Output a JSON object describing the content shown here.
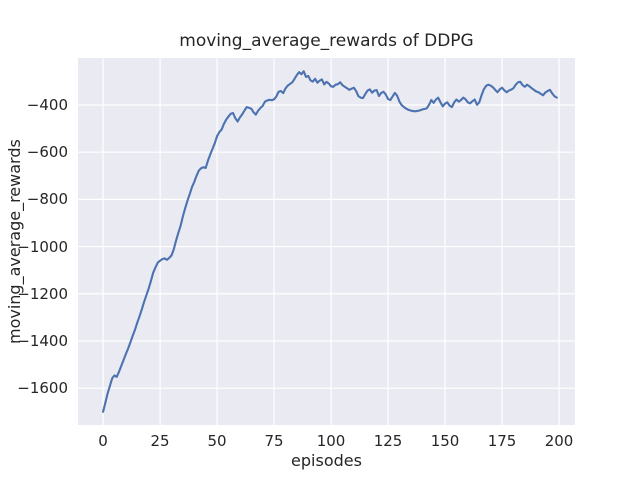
{
  "chart_data": {
    "type": "line",
    "title": "moving_average_rewards of DDPG",
    "xlabel": "episodes",
    "ylabel": "moving_average_rewards",
    "xlim": [
      -11,
      207
    ],
    "ylim": [
      -1756,
      -201
    ],
    "grid": true,
    "legend_position": "none",
    "background_color": "#eaeaf2",
    "grid_color": "#ffffff",
    "line_color": "#4c72b0",
    "text_color": "#262626",
    "x_ticks": [
      {
        "value": 0,
        "label": "0"
      },
      {
        "value": 25,
        "label": "25"
      },
      {
        "value": 50,
        "label": "50"
      },
      {
        "value": 75,
        "label": "75"
      },
      {
        "value": 100,
        "label": "100"
      },
      {
        "value": 125,
        "label": "125"
      },
      {
        "value": 150,
        "label": "150"
      },
      {
        "value": 175,
        "label": "175"
      },
      {
        "value": 200,
        "label": "200"
      }
    ],
    "y_ticks": [
      {
        "value": -400,
        "label": "−400"
      },
      {
        "value": -600,
        "label": "−600"
      },
      {
        "value": -800,
        "label": "−800"
      },
      {
        "value": -1000,
        "label": "−1000"
      },
      {
        "value": -1200,
        "label": "−1200"
      },
      {
        "value": -1400,
        "label": "−1400"
      },
      {
        "value": -1600,
        "label": "−1600"
      }
    ],
    "series": [
      {
        "name": "moving_average_rewards",
        "x": [
          0,
          1,
          2,
          3,
          4,
          5,
          6,
          7,
          8,
          9,
          10,
          11,
          12,
          13,
          14,
          15,
          16,
          17,
          18,
          19,
          20,
          21,
          22,
          23,
          24,
          25,
          26,
          27,
          28,
          29,
          30,
          31,
          32,
          33,
          34,
          35,
          36,
          37,
          38,
          39,
          40,
          41,
          42,
          43,
          44,
          45,
          46,
          47,
          48,
          49,
          50,
          51,
          52,
          53,
          54,
          55,
          56,
          57,
          58,
          59,
          60,
          61,
          62,
          63,
          64,
          65,
          66,
          67,
          68,
          69,
          70,
          71,
          72,
          73,
          74,
          75,
          76,
          77,
          78,
          79,
          80,
          81,
          82,
          83,
          84,
          85,
          86,
          87,
          88,
          89,
          90,
          91,
          92,
          93,
          94,
          95,
          96,
          97,
          98,
          99,
          100,
          101,
          102,
          103,
          104,
          105,
          106,
          107,
          108,
          109,
          110,
          111,
          112,
          113,
          114,
          115,
          116,
          117,
          118,
          119,
          120,
          121,
          122,
          123,
          124,
          125,
          126,
          127,
          128,
          129,
          130,
          131,
          132,
          133,
          134,
          135,
          136,
          137,
          138,
          139,
          140,
          141,
          142,
          143,
          144,
          145,
          146,
          147,
          148,
          149,
          150,
          151,
          152,
          153,
          154,
          155,
          156,
          157,
          158,
          159,
          160,
          161,
          162,
          163,
          164,
          165,
          166,
          167,
          168,
          169,
          170,
          171,
          172,
          173,
          174,
          175,
          176,
          177,
          178,
          179,
          180,
          181,
          182,
          183,
          184,
          185,
          186,
          187,
          188,
          189,
          190,
          191,
          192,
          193,
          194,
          195,
          196,
          197,
          198,
          199
        ],
        "y": [
          -1700,
          -1662,
          -1622,
          -1590,
          -1558,
          -1546,
          -1552,
          -1530,
          -1505,
          -1480,
          -1455,
          -1432,
          -1405,
          -1378,
          -1352,
          -1322,
          -1295,
          -1266,
          -1234,
          -1206,
          -1178,
          -1145,
          -1110,
          -1088,
          -1068,
          -1060,
          -1053,
          -1050,
          -1056,
          -1048,
          -1038,
          -1012,
          -975,
          -942,
          -912,
          -872,
          -838,
          -806,
          -778,
          -748,
          -726,
          -700,
          -678,
          -668,
          -664,
          -667,
          -636,
          -610,
          -586,
          -562,
          -532,
          -515,
          -504,
          -480,
          -462,
          -449,
          -437,
          -434,
          -456,
          -470,
          -453,
          -440,
          -424,
          -409,
          -412,
          -416,
          -431,
          -441,
          -424,
          -413,
          -404,
          -386,
          -381,
          -378,
          -380,
          -376,
          -364,
          -344,
          -341,
          -350,
          -330,
          -318,
          -311,
          -304,
          -289,
          -273,
          -261,
          -270,
          -257,
          -281,
          -277,
          -296,
          -301,
          -289,
          -306,
          -297,
          -292,
          -313,
          -302,
          -309,
          -321,
          -323,
          -314,
          -312,
          -304,
          -316,
          -323,
          -329,
          -336,
          -331,
          -327,
          -341,
          -363,
          -369,
          -371,
          -354,
          -339,
          -334,
          -348,
          -339,
          -337,
          -362,
          -349,
          -344,
          -356,
          -375,
          -379,
          -364,
          -349,
          -361,
          -386,
          -401,
          -409,
          -416,
          -421,
          -424,
          -426,
          -427,
          -425,
          -423,
          -419,
          -417,
          -414,
          -399,
          -379,
          -391,
          -377,
          -369,
          -389,
          -406,
          -394,
          -389,
          -403,
          -409,
          -389,
          -377,
          -386,
          -379,
          -369,
          -376,
          -389,
          -393,
          -384,
          -377,
          -399,
          -389,
          -359,
          -334,
          -319,
          -314,
          -318,
          -325,
          -336,
          -346,
          -334,
          -327,
          -338,
          -346,
          -339,
          -335,
          -329,
          -314,
          -304,
          -302,
          -316,
          -323,
          -314,
          -321,
          -329,
          -336,
          -343,
          -346,
          -353,
          -359,
          -347,
          -341,
          -336,
          -351,
          -363,
          -369
        ]
      }
    ]
  }
}
